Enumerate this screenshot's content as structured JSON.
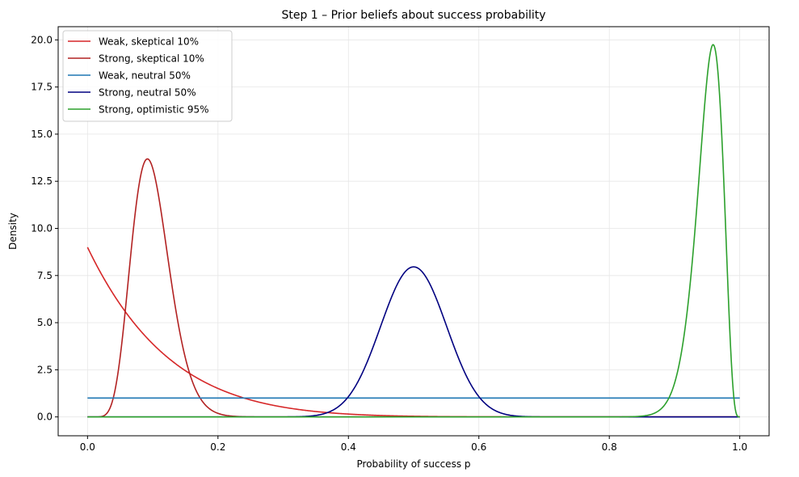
{
  "chart_data": {
    "type": "line",
    "title": "Step 1 – Prior beliefs about success probability",
    "xlabel": "Probability of success p",
    "ylabel": "Density",
    "xlim": [
      -0.045,
      1.045
    ],
    "ylim": [
      -1.0,
      20.7
    ],
    "x_ticks": [
      {
        "value": 0.0,
        "label": "0.0"
      },
      {
        "value": 0.2,
        "label": "0.2"
      },
      {
        "value": 0.4,
        "label": "0.4"
      },
      {
        "value": 0.6,
        "label": "0.6"
      },
      {
        "value": 0.8,
        "label": "0.8"
      },
      {
        "value": 1.0,
        "label": "1.0"
      }
    ],
    "y_ticks": [
      {
        "value": 0.0,
        "label": "0.0"
      },
      {
        "value": 2.5,
        "label": "2.5"
      },
      {
        "value": 5.0,
        "label": "5.0"
      },
      {
        "value": 7.5,
        "label": "7.5"
      },
      {
        "value": 10.0,
        "label": "10.0"
      },
      {
        "value": 12.5,
        "label": "12.5"
      },
      {
        "value": 15.0,
        "label": "15.0"
      },
      {
        "value": 17.5,
        "label": "17.5"
      },
      {
        "value": 20.0,
        "label": "20.0"
      }
    ],
    "grid": true,
    "legend_position": "top-left",
    "series": [
      {
        "name": "Weak, skeptical 10%",
        "color": "#d62728",
        "distribution": "beta",
        "alpha": 1,
        "beta": 9
      },
      {
        "name": "Strong, skeptical 10%",
        "color": "#b22222",
        "distribution": "beta",
        "alpha": 10,
        "beta": 90
      },
      {
        "name": "Weak, neutral 50%",
        "color": "#1f77b4",
        "distribution": "beta",
        "alpha": 1,
        "beta": 1
      },
      {
        "name": "Strong, neutral 50%",
        "color": "#000080",
        "distribution": "beta",
        "alpha": 50,
        "beta": 50
      },
      {
        "name": "Strong, optimistic 95%",
        "color": "#2ca02c",
        "distribution": "beta",
        "alpha": 95,
        "beta": 5
      }
    ]
  }
}
